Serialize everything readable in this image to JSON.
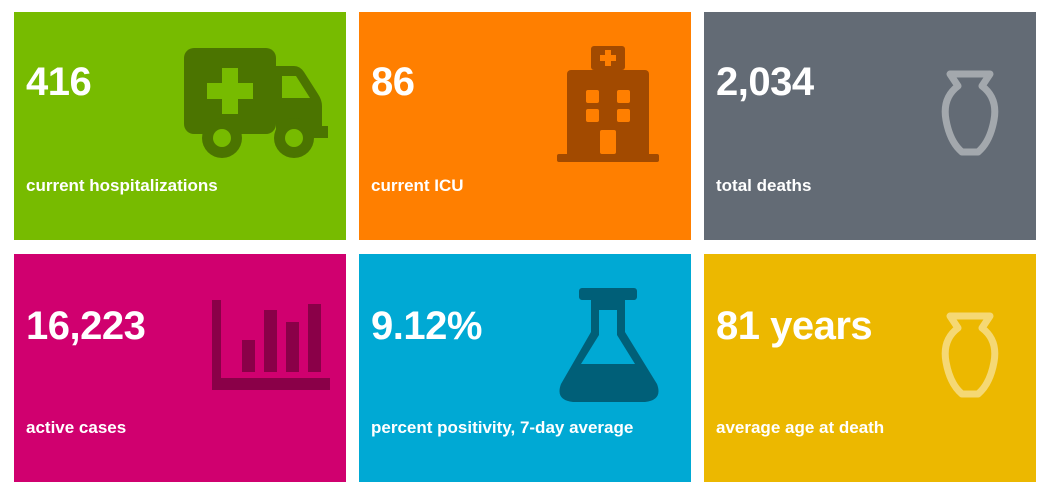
{
  "cards": [
    {
      "value": "416",
      "label": "current hospitalizations",
      "icon": "ambulance-icon",
      "color": "#77bb00"
    },
    {
      "value": "86",
      "label": "current ICU",
      "icon": "hospital-icon",
      "color": "#ff7f00"
    },
    {
      "value": "2,034",
      "label": "total deaths",
      "icon": "urn-icon",
      "color": "#636b75"
    },
    {
      "value": "16,223",
      "label": "active cases",
      "icon": "bar-chart-icon",
      "color": "#d0006f"
    },
    {
      "value": "9.12%",
      "label": "percent positivity, 7-day average",
      "icon": "flask-icon",
      "color": "#00a9d4"
    },
    {
      "value": "81 years",
      "label": "average age at death",
      "icon": "urn-icon",
      "color": "#ecb800"
    }
  ]
}
